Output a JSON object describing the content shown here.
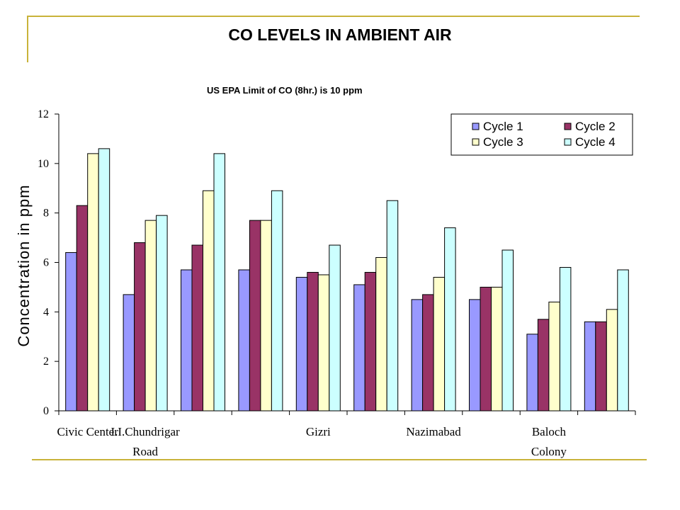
{
  "chart_data": {
    "type": "bar",
    "title": "CO LEVELS IN AMBIENT AIR",
    "subtitle": "US EPA Limit of CO (8hr.) is 10 ppm",
    "ylabel": "Concentration in ppm",
    "xlabel": "",
    "ylim": [
      0,
      12
    ],
    "yticks": [
      "0",
      "2",
      "4",
      "6",
      "8",
      "10",
      "12"
    ],
    "legend_position": "top-right",
    "grid": false,
    "category_labels": [
      {
        "line1": "Civic Center",
        "line2": "",
        "group": 0
      },
      {
        "line1": "I.I.Chundrigar",
        "line2": "Road",
        "group": 1
      },
      {
        "line1": "Gizri",
        "line2": "",
        "group": 4
      },
      {
        "line1": "Nazimabad",
        "line2": "",
        "group": 6
      },
      {
        "line1": "Baloch",
        "line2": "Colony",
        "group": 8
      }
    ],
    "categories": [
      "Civic Center",
      "I.I.Chundrigar Road",
      "",
      "",
      "Gizri",
      "",
      "Nazimabad",
      "",
      "Baloch Colony",
      ""
    ],
    "series": [
      {
        "name": "Cycle 1",
        "color": "#9999ff",
        "values": [
          6.4,
          4.7,
          5.7,
          5.7,
          5.4,
          5.1,
          4.5,
          4.5,
          3.1,
          3.6
        ]
      },
      {
        "name": "Cycle 2",
        "color": "#993366",
        "values": [
          8.3,
          6.8,
          6.7,
          7.7,
          5.6,
          5.6,
          4.7,
          5.0,
          3.7,
          3.6
        ]
      },
      {
        "name": "Cycle 3",
        "color": "#ffffcc",
        "values": [
          10.4,
          7.7,
          8.9,
          7.7,
          5.5,
          6.2,
          5.4,
          5.0,
          4.4,
          4.1
        ]
      },
      {
        "name": "Cycle 4",
        "color": "#ccffff",
        "values": [
          10.6,
          7.9,
          10.4,
          8.9,
          6.7,
          8.5,
          7.4,
          6.5,
          5.8,
          5.7
        ]
      }
    ]
  }
}
